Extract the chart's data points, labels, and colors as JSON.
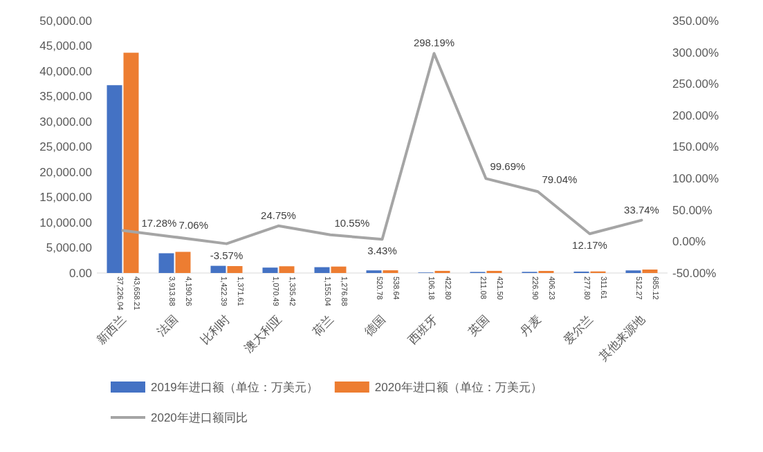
{
  "chart_data": {
    "type": "bar",
    "categories": [
      "新西兰",
      "法国",
      "比利时",
      "澳大利亚",
      "荷兰",
      "德国",
      "西班牙",
      "英国",
      "丹麦",
      "爱尔兰",
      "其他来源地"
    ],
    "series": [
      {
        "name": "2019年进口额（单位：万美元）",
        "color": "#4472c4",
        "values": [
          37226.04,
          3913.88,
          1422.39,
          1070.49,
          1155.04,
          520.78,
          106.18,
          211.08,
          226.9,
          277.8,
          512.27
        ],
        "value_labels": [
          "37,226.04",
          "3,913.88",
          "1,422.39",
          "1,070.49",
          "1,155.04",
          "520.78",
          "106.18",
          "211.08",
          "226.90",
          "277.80",
          "512.27"
        ]
      },
      {
        "name": "2020年进口额（单位：万美元）",
        "color": "#ed7d31",
        "values": [
          43658.21,
          4190.26,
          1371.61,
          1335.42,
          1276.88,
          538.64,
          422.8,
          421.5,
          406.23,
          311.61,
          685.12
        ],
        "value_labels": [
          "43,658.21",
          "4,190.26",
          "1,371.61",
          "1,335.42",
          "1,276.88",
          "538.64",
          "422.80",
          "421.50",
          "406.23",
          "311.61",
          "685.12"
        ]
      },
      {
        "name": "2020年进口额同比",
        "type": "line",
        "axis": "y2",
        "color": "#a5a5a5",
        "values": [
          17.28,
          7.06,
          -3.57,
          24.75,
          10.55,
          3.43,
          298.19,
          99.69,
          79.04,
          12.17,
          33.74
        ],
        "value_labels": [
          "17.28%",
          "7.06%",
          "-3.57%",
          "24.75%",
          "10.55%",
          "3.43%",
          "298.19%",
          "99.69%",
          "79.04%",
          "12.17%",
          "33.74%"
        ]
      }
    ],
    "ylim": [
      0,
      50000
    ],
    "yticks": [
      {
        "value": 0,
        "label": "0.00"
      },
      {
        "value": 5000,
        "label": "5,000.00"
      },
      {
        "value": 10000,
        "label": "10,000.00"
      },
      {
        "value": 15000,
        "label": "15,000.00"
      },
      {
        "value": 20000,
        "label": "20,000.00"
      },
      {
        "value": 25000,
        "label": "25,000.00"
      },
      {
        "value": 30000,
        "label": "30,000.00"
      },
      {
        "value": 35000,
        "label": "35,000.00"
      },
      {
        "value": 40000,
        "label": "40,000.00"
      },
      {
        "value": 45000,
        "label": "45,000.00"
      },
      {
        "value": 50000,
        "label": "50,000.00"
      }
    ],
    "y2lim": [
      -50,
      350
    ],
    "y2ticks": [
      {
        "value": -50,
        "label": "-50.00%"
      },
      {
        "value": 0,
        "label": "0.00%"
      },
      {
        "value": 50,
        "label": "50.00%"
      },
      {
        "value": 100,
        "label": "100.00%"
      },
      {
        "value": 150,
        "label": "150.00%"
      },
      {
        "value": 200,
        "label": "200.00%"
      },
      {
        "value": 250,
        "label": "250.00%"
      },
      {
        "value": 300,
        "label": "300.00%"
      },
      {
        "value": 350,
        "label": "350.00%"
      }
    ],
    "legend": "bottom"
  }
}
